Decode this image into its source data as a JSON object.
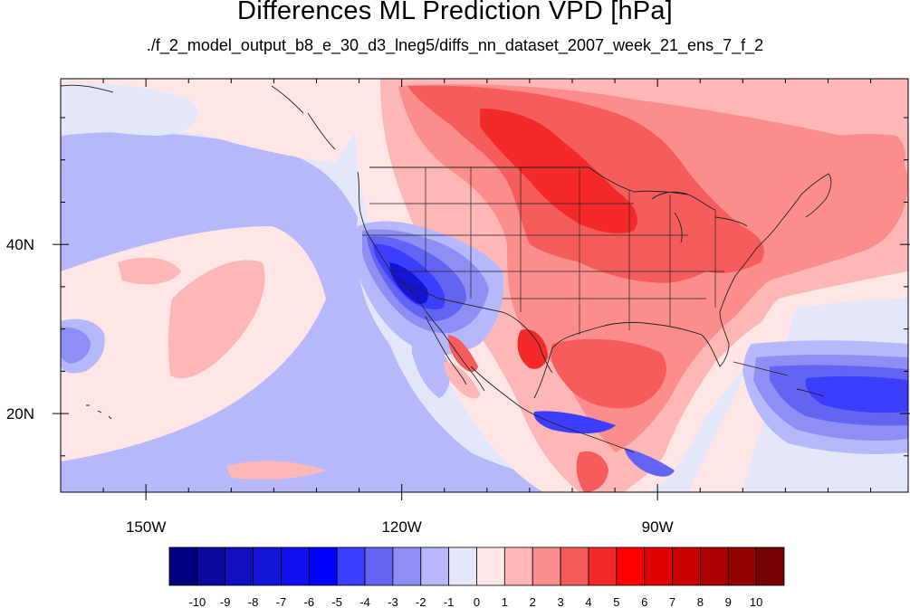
{
  "title": "Differences ML Prediction VPD [hPa]",
  "subtitle": "./f_2_model_output_b8_e_30_d3_lneg5/diffs_nn_dataset_2007_week_21_ens_7_f_2",
  "x_ticks": [
    {
      "label": "150W",
      "value": -150
    },
    {
      "label": "120W",
      "value": -120
    },
    {
      "label": "90W",
      "value": -90
    }
  ],
  "y_ticks": [
    {
      "label": "40N",
      "value": 40
    },
    {
      "label": "20N",
      "value": 20
    }
  ],
  "colorbar": {
    "labels": [
      "-10",
      "-9",
      "-8",
      "-7",
      "-6",
      "-5",
      "-4",
      "-3",
      "-2",
      "-1",
      "0",
      "1",
      "2",
      "3",
      "4",
      "5",
      "6",
      "7",
      "8",
      "9",
      "10"
    ],
    "colors": [
      "#000080",
      "#0a0a9f",
      "#0f0fbf",
      "#1414d6",
      "#1010ee",
      "#0000ff",
      "#3d3dff",
      "#6464f2",
      "#8e8ef5",
      "#b7b7fb",
      "#e4e6fa",
      "#ffe6e6",
      "#fdb7b7",
      "#fb8d8d",
      "#f65c5c",
      "#f42a2a",
      "#ff0000",
      "#e10000",
      "#c80000",
      "#ac0000",
      "#930000",
      "#760000"
    ]
  },
  "map_colors": {
    "ocean_light": "#e4e6fa",
    "neutral": "#ffe6e6",
    "pos1": "#fdb7b7",
    "pos2": "#fb8d8d",
    "pos3": "#f65c5c",
    "pos4": "#f42a2a",
    "neg1": "#b7b7fb",
    "neg2": "#8e8ef5",
    "neg3": "#6464f2",
    "neg4": "#3d3dff",
    "neg5": "#1414d6"
  }
}
